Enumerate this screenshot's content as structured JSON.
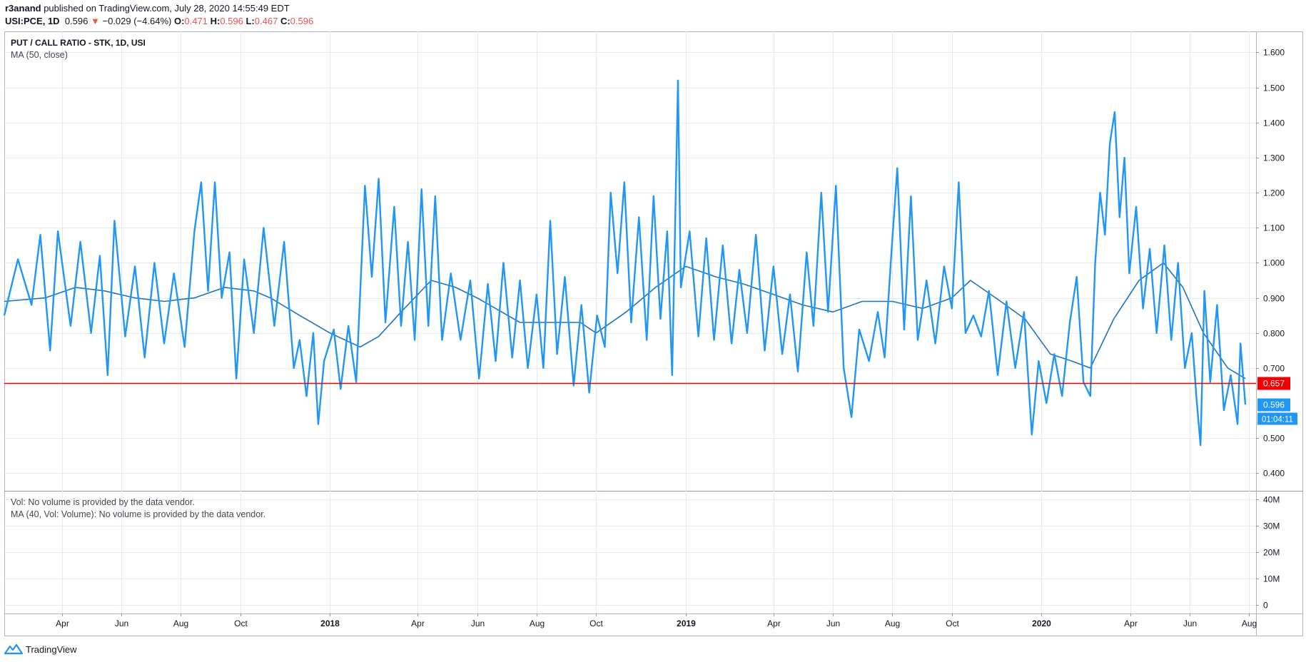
{
  "header": {
    "author": "r3anand",
    "published": "published on TradingView.com, July 28, 2020 14:55:49 EDT",
    "symbol_interval": "USI:PCE, 1D",
    "last": "0.596",
    "change_arrow": "▼",
    "change": "−0.029 (−4.64%)",
    "o_label": "O:",
    "o_value": "0.471",
    "h_label": "H:",
    "h_value": "0.596",
    "l_label": "L:",
    "l_value": "0.467",
    "c_label": "C:",
    "c_value": "0.596"
  },
  "legend": {
    "title": "PUT / CALL RATIO - STK, 1D, USI",
    "ma": "MA (50, close)",
    "vol": "Vol: No volume is provided by the data vendor.",
    "vol_ma": "MA (40, Vol: Volume): No volume is provided by the data vendor."
  },
  "footer": {
    "brand": "TradingView",
    "logo_icon": "tradingview-logo-icon"
  },
  "colors": {
    "series": "#2196f3",
    "ma": "#1e73be",
    "hline": "#f00000",
    "grid": "#e4eaf2",
    "axis_text": "#131722"
  },
  "chart_data": {
    "type": "line",
    "title": "PUT / CALL RATIO - STK, 1D, USI",
    "x_start": "2017-02-01",
    "x_end": "2020-07-28",
    "ylim": [
      0.35,
      1.66
    ],
    "y_ticks": [
      "1.600",
      "1.500",
      "1.400",
      "1.300",
      "1.200",
      "1.100",
      "1.000",
      "0.900",
      "0.800",
      "0.700",
      "0.500",
      "0.400"
    ],
    "x_ticks": [
      {
        "date": "2017-04-01",
        "label": "Apr",
        "bold": false
      },
      {
        "date": "2017-06-01",
        "label": "Jun",
        "bold": false
      },
      {
        "date": "2017-08-01",
        "label": "Aug",
        "bold": false
      },
      {
        "date": "2017-10-01",
        "label": "Oct",
        "bold": false
      },
      {
        "date": "2018-01-01",
        "label": "2018",
        "bold": true
      },
      {
        "date": "2018-04-01",
        "label": "Apr",
        "bold": false
      },
      {
        "date": "2018-06-01",
        "label": "Jun",
        "bold": false
      },
      {
        "date": "2018-08-01",
        "label": "Aug",
        "bold": false
      },
      {
        "date": "2018-10-01",
        "label": "Oct",
        "bold": false
      },
      {
        "date": "2019-01-01",
        "label": "2019",
        "bold": true
      },
      {
        "date": "2019-04-01",
        "label": "Apr",
        "bold": false
      },
      {
        "date": "2019-06-01",
        "label": "Jun",
        "bold": false
      },
      {
        "date": "2019-08-01",
        "label": "Aug",
        "bold": false
      },
      {
        "date": "2019-10-01",
        "label": "Oct",
        "bold": false
      },
      {
        "date": "2020-01-01",
        "label": "2020",
        "bold": true
      },
      {
        "date": "2020-04-01",
        "label": "Apr",
        "bold": false
      },
      {
        "date": "2020-06-01",
        "label": "Jun",
        "bold": false
      },
      {
        "date": "2020-08-01",
        "label": "Aug",
        "bold": false
      }
    ],
    "horizontal_line": {
      "value": 0.657,
      "label": "0.657"
    },
    "last_value_label": "0.596",
    "countdown_label": "01:04:11",
    "volume_axis": [
      "40M",
      "30M",
      "20M",
      "10M",
      "0"
    ],
    "series": [
      {
        "name": "PUT / CALL RATIO",
        "points": [
          [
            "2017-02-01",
            0.85
          ],
          [
            "2017-02-15",
            1.01
          ],
          [
            "2017-03-01",
            0.88
          ],
          [
            "2017-03-10",
            1.08
          ],
          [
            "2017-03-20",
            0.75
          ],
          [
            "2017-03-28",
            1.09
          ],
          [
            "2017-04-10",
            0.82
          ],
          [
            "2017-04-20",
            1.06
          ],
          [
            "2017-05-01",
            0.8
          ],
          [
            "2017-05-10",
            1.02
          ],
          [
            "2017-05-18",
            0.68
          ],
          [
            "2017-05-25",
            1.12
          ],
          [
            "2017-06-05",
            0.79
          ],
          [
            "2017-06-15",
            0.99
          ],
          [
            "2017-06-25",
            0.73
          ],
          [
            "2017-07-05",
            1.0
          ],
          [
            "2017-07-15",
            0.77
          ],
          [
            "2017-07-25",
            0.97
          ],
          [
            "2017-08-05",
            0.76
          ],
          [
            "2017-08-15",
            1.09
          ],
          [
            "2017-08-22",
            1.23
          ],
          [
            "2017-08-29",
            0.92
          ],
          [
            "2017-09-05",
            1.23
          ],
          [
            "2017-09-12",
            0.9
          ],
          [
            "2017-09-20",
            1.03
          ],
          [
            "2017-09-27",
            0.67
          ],
          [
            "2017-10-05",
            1.01
          ],
          [
            "2017-10-15",
            0.8
          ],
          [
            "2017-10-25",
            1.1
          ],
          [
            "2017-11-05",
            0.82
          ],
          [
            "2017-11-15",
            1.06
          ],
          [
            "2017-11-25",
            0.7
          ],
          [
            "2017-12-01",
            0.78
          ],
          [
            "2017-12-08",
            0.62
          ],
          [
            "2017-12-15",
            0.8
          ],
          [
            "2017-12-20",
            0.54
          ],
          [
            "2017-12-26",
            0.72
          ],
          [
            "2018-01-05",
            0.81
          ],
          [
            "2018-01-12",
            0.64
          ],
          [
            "2018-01-20",
            0.82
          ],
          [
            "2018-01-28",
            0.66
          ],
          [
            "2018-02-06",
            1.22
          ],
          [
            "2018-02-13",
            0.96
          ],
          [
            "2018-02-20",
            1.24
          ],
          [
            "2018-02-27",
            0.83
          ],
          [
            "2018-03-08",
            1.16
          ],
          [
            "2018-03-15",
            0.82
          ],
          [
            "2018-03-22",
            1.06
          ],
          [
            "2018-03-29",
            0.78
          ],
          [
            "2018-04-05",
            1.21
          ],
          [
            "2018-04-12",
            0.82
          ],
          [
            "2018-04-19",
            1.19
          ],
          [
            "2018-04-26",
            0.78
          ],
          [
            "2018-05-05",
            0.97
          ],
          [
            "2018-05-15",
            0.78
          ],
          [
            "2018-05-25",
            0.95
          ],
          [
            "2018-06-03",
            0.67
          ],
          [
            "2018-06-12",
            0.94
          ],
          [
            "2018-06-20",
            0.72
          ],
          [
            "2018-06-28",
            1.0
          ],
          [
            "2018-07-07",
            0.73
          ],
          [
            "2018-07-15",
            0.95
          ],
          [
            "2018-07-23",
            0.7
          ],
          [
            "2018-08-01",
            0.91
          ],
          [
            "2018-08-08",
            0.7
          ],
          [
            "2018-08-15",
            1.12
          ],
          [
            "2018-08-22",
            0.74
          ],
          [
            "2018-08-30",
            0.96
          ],
          [
            "2018-09-08",
            0.65
          ],
          [
            "2018-09-16",
            0.88
          ],
          [
            "2018-09-24",
            0.63
          ],
          [
            "2018-10-02",
            0.85
          ],
          [
            "2018-10-10",
            0.76
          ],
          [
            "2018-10-16",
            1.2
          ],
          [
            "2018-10-23",
            0.97
          ],
          [
            "2018-10-30",
            1.23
          ],
          [
            "2018-11-06",
            0.83
          ],
          [
            "2018-11-14",
            1.13
          ],
          [
            "2018-11-22",
            0.78
          ],
          [
            "2018-11-29",
            1.19
          ],
          [
            "2018-12-06",
            0.84
          ],
          [
            "2018-12-13",
            1.09
          ],
          [
            "2018-12-18",
            0.68
          ],
          [
            "2018-12-24",
            1.52
          ],
          [
            "2018-12-27",
            0.93
          ],
          [
            "2019-01-05",
            1.09
          ],
          [
            "2019-01-14",
            0.79
          ],
          [
            "2019-01-22",
            1.07
          ],
          [
            "2019-01-30",
            0.78
          ],
          [
            "2019-02-08",
            1.05
          ],
          [
            "2019-02-17",
            0.77
          ],
          [
            "2019-02-25",
            0.98
          ],
          [
            "2019-03-05",
            0.8
          ],
          [
            "2019-03-14",
            1.08
          ],
          [
            "2019-03-23",
            0.75
          ],
          [
            "2019-04-01",
            0.99
          ],
          [
            "2019-04-10",
            0.74
          ],
          [
            "2019-04-18",
            0.91
          ],
          [
            "2019-04-26",
            0.69
          ],
          [
            "2019-05-05",
            1.03
          ],
          [
            "2019-05-12",
            0.82
          ],
          [
            "2019-05-20",
            1.2
          ],
          [
            "2019-05-27",
            0.86
          ],
          [
            "2019-06-04",
            1.22
          ],
          [
            "2019-06-12",
            0.7
          ],
          [
            "2019-06-20",
            0.56
          ],
          [
            "2019-06-28",
            0.81
          ],
          [
            "2019-07-08",
            0.72
          ],
          [
            "2019-07-17",
            0.86
          ],
          [
            "2019-07-24",
            0.73
          ],
          [
            "2019-07-31",
            1.03
          ],
          [
            "2019-08-06",
            1.27
          ],
          [
            "2019-08-13",
            0.81
          ],
          [
            "2019-08-20",
            1.19
          ],
          [
            "2019-08-27",
            0.78
          ],
          [
            "2019-09-05",
            0.95
          ],
          [
            "2019-09-14",
            0.77
          ],
          [
            "2019-09-23",
            0.99
          ],
          [
            "2019-10-01",
            0.87
          ],
          [
            "2019-10-08",
            1.23
          ],
          [
            "2019-10-15",
            0.8
          ],
          [
            "2019-10-23",
            0.85
          ],
          [
            "2019-10-31",
            0.79
          ],
          [
            "2019-11-08",
            0.92
          ],
          [
            "2019-11-17",
            0.68
          ],
          [
            "2019-11-26",
            0.89
          ],
          [
            "2019-12-05",
            0.7
          ],
          [
            "2019-12-14",
            0.86
          ],
          [
            "2019-12-22",
            0.51
          ],
          [
            "2019-12-29",
            0.72
          ],
          [
            "2020-01-06",
            0.6
          ],
          [
            "2020-01-14",
            0.74
          ],
          [
            "2020-01-22",
            0.62
          ],
          [
            "2020-01-30",
            0.83
          ],
          [
            "2020-02-06",
            0.96
          ],
          [
            "2020-02-13",
            0.66
          ],
          [
            "2020-02-20",
            0.62
          ],
          [
            "2020-02-25",
            1.0
          ],
          [
            "2020-03-01",
            1.2
          ],
          [
            "2020-03-06",
            1.08
          ],
          [
            "2020-03-11",
            1.34
          ],
          [
            "2020-03-16",
            1.43
          ],
          [
            "2020-03-21",
            1.13
          ],
          [
            "2020-03-26",
            1.3
          ],
          [
            "2020-03-31",
            0.97
          ],
          [
            "2020-04-07",
            1.16
          ],
          [
            "2020-04-14",
            0.87
          ],
          [
            "2020-04-21",
            1.04
          ],
          [
            "2020-04-28",
            0.8
          ],
          [
            "2020-05-06",
            1.05
          ],
          [
            "2020-05-13",
            0.78
          ],
          [
            "2020-05-20",
            1.0
          ],
          [
            "2020-05-27",
            0.7
          ],
          [
            "2020-06-03",
            0.8
          ],
          [
            "2020-06-08",
            0.61
          ],
          [
            "2020-06-12",
            0.48
          ],
          [
            "2020-06-16",
            0.92
          ],
          [
            "2020-06-22",
            0.66
          ],
          [
            "2020-06-29",
            0.88
          ],
          [
            "2020-07-06",
            0.58
          ],
          [
            "2020-07-13",
            0.68
          ],
          [
            "2020-07-20",
            0.54
          ],
          [
            "2020-07-23",
            0.77
          ],
          [
            "2020-07-28",
            0.596
          ]
        ]
      },
      {
        "name": "MA (50, close)",
        "points": [
          [
            "2017-02-01",
            0.89
          ],
          [
            "2017-03-15",
            0.9
          ],
          [
            "2017-04-15",
            0.93
          ],
          [
            "2017-05-15",
            0.92
          ],
          [
            "2017-06-15",
            0.9
          ],
          [
            "2017-07-15",
            0.89
          ],
          [
            "2017-08-15",
            0.9
          ],
          [
            "2017-09-15",
            0.93
          ],
          [
            "2017-10-15",
            0.92
          ],
          [
            "2017-11-01",
            0.9
          ],
          [
            "2017-12-01",
            0.85
          ],
          [
            "2018-01-01",
            0.8
          ],
          [
            "2018-02-01",
            0.76
          ],
          [
            "2018-02-20",
            0.79
          ],
          [
            "2018-03-15",
            0.86
          ],
          [
            "2018-04-15",
            0.95
          ],
          [
            "2018-05-10",
            0.93
          ],
          [
            "2018-06-01",
            0.9
          ],
          [
            "2018-06-20",
            0.87
          ],
          [
            "2018-07-15",
            0.83
          ],
          [
            "2018-08-15",
            0.83
          ],
          [
            "2018-09-15",
            0.83
          ],
          [
            "2018-10-01",
            0.8
          ],
          [
            "2018-11-01",
            0.86
          ],
          [
            "2018-12-01",
            0.93
          ],
          [
            "2019-01-01",
            0.99
          ],
          [
            "2019-02-01",
            0.96
          ],
          [
            "2019-03-01",
            0.94
          ],
          [
            "2019-04-01",
            0.91
          ],
          [
            "2019-05-01",
            0.88
          ],
          [
            "2019-06-01",
            0.86
          ],
          [
            "2019-07-01",
            0.89
          ],
          [
            "2019-08-01",
            0.89
          ],
          [
            "2019-09-01",
            0.87
          ],
          [
            "2019-10-01",
            0.9
          ],
          [
            "2019-10-20",
            0.95
          ],
          [
            "2019-11-15",
            0.9
          ],
          [
            "2019-12-15",
            0.84
          ],
          [
            "2020-01-10",
            0.74
          ],
          [
            "2020-02-01",
            0.72
          ],
          [
            "2020-02-20",
            0.7
          ],
          [
            "2020-03-15",
            0.84
          ],
          [
            "2020-04-10",
            0.95
          ],
          [
            "2020-05-05",
            1.0
          ],
          [
            "2020-05-25",
            0.93
          ],
          [
            "2020-06-15",
            0.8
          ],
          [
            "2020-07-10",
            0.7
          ],
          [
            "2020-07-28",
            0.67
          ]
        ]
      }
    ]
  }
}
